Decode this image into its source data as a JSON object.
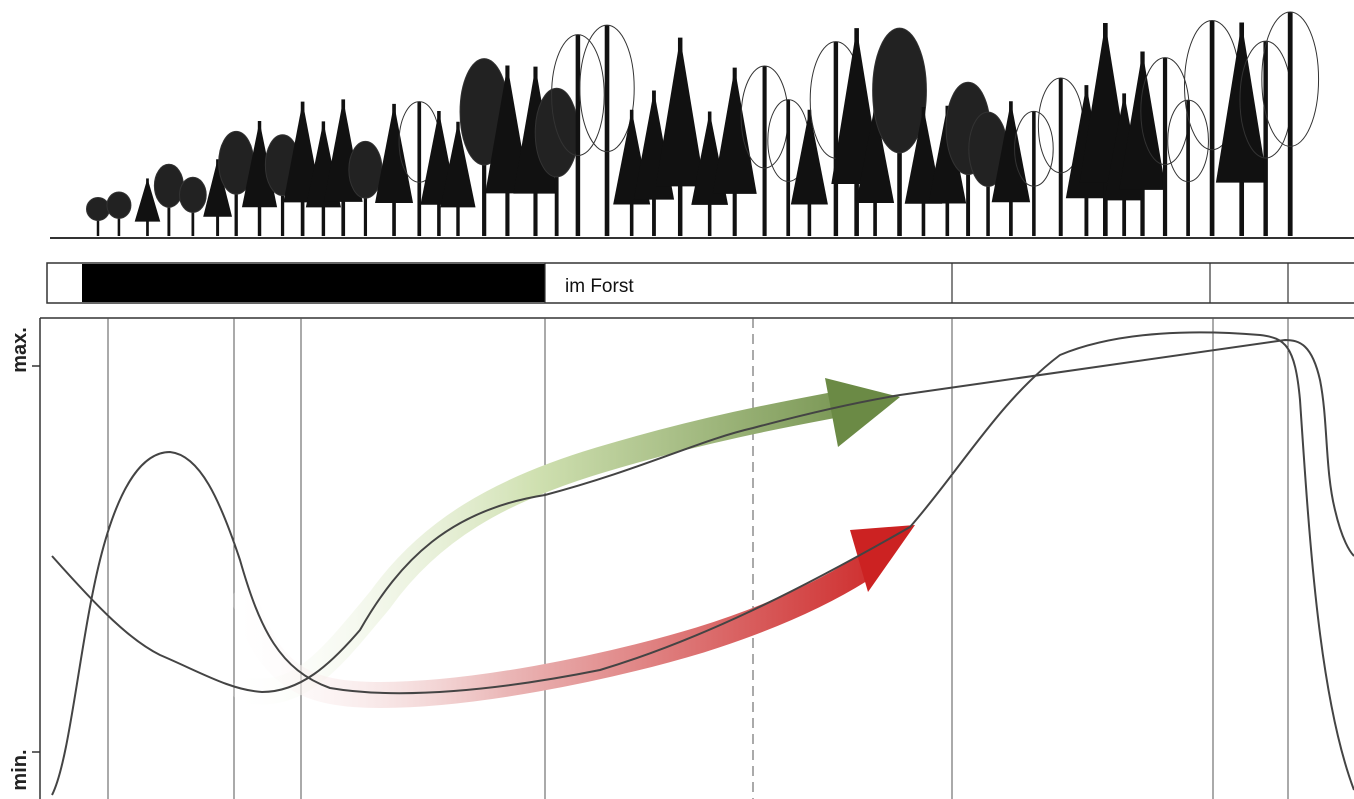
{
  "band": {
    "label": "im Forst"
  },
  "axis": {
    "max": "max.",
    "min": "min."
  }
}
